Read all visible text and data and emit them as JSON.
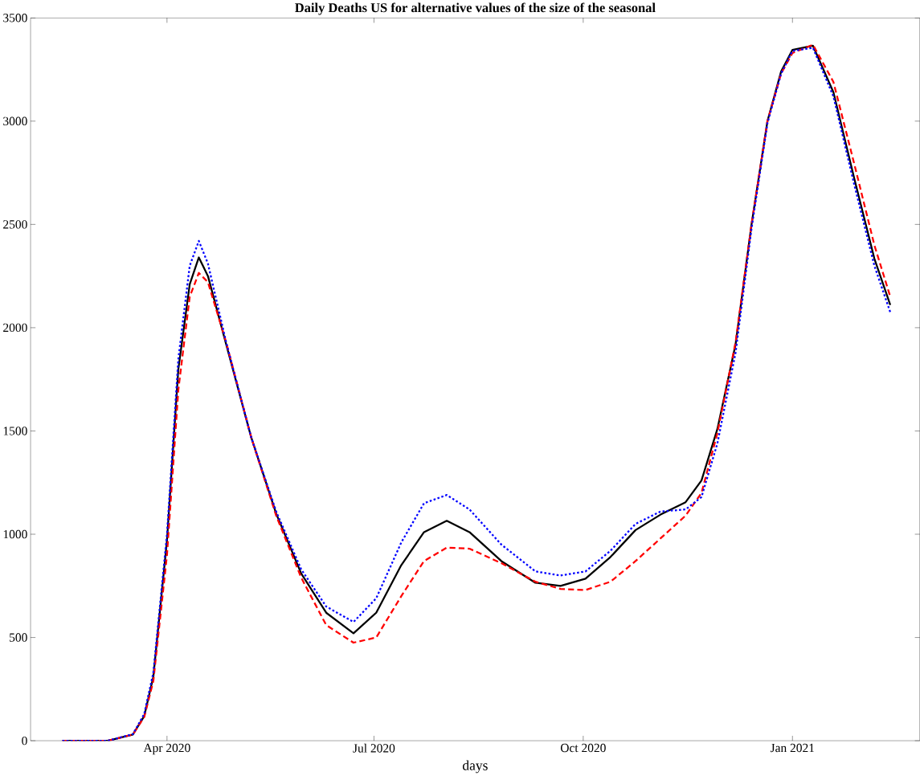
{
  "chart_data": {
    "type": "line",
    "title": "Daily Deaths US for alternative values of the size of the seasonal",
    "xlabel": "days",
    "x": [
      "2020-02-15",
      "2020-03-06",
      "2020-03-17",
      "2020-03-22",
      "2020-03-26",
      "2020-04-01",
      "2020-04-06",
      "2020-04-11",
      "2020-04-15",
      "2020-04-19",
      "2020-04-27",
      "2020-05-08",
      "2020-05-19",
      "2020-05-30",
      "2020-06-10",
      "2020-06-22",
      "2020-07-02",
      "2020-07-13",
      "2020-07-23",
      "2020-08-02",
      "2020-08-12",
      "2020-08-26",
      "2020-09-10",
      "2020-09-21",
      "2020-10-02",
      "2020-10-13",
      "2020-10-24",
      "2020-11-04",
      "2020-11-15",
      "2020-11-22",
      "2020-11-29",
      "2020-12-07",
      "2020-12-14",
      "2020-12-21",
      "2020-12-27",
      "2021-01-01",
      "2021-01-10",
      "2021-01-19",
      "2021-01-28",
      "2021-02-06",
      "2021-02-13"
    ],
    "series": [
      {
        "color": "#000000",
        "line_style": "solid",
        "values": [
          0,
          0,
          30,
          120,
          310,
          970,
          1800,
          2210,
          2340,
          2250,
          1920,
          1470,
          1100,
          810,
          620,
          520,
          620,
          850,
          1010,
          1065,
          1010,
          870,
          765,
          750,
          785,
          890,
          1020,
          1095,
          1155,
          1260,
          1510,
          1920,
          2500,
          3000,
          3240,
          3345,
          3365,
          3140,
          2730,
          2335,
          2110
        ]
      },
      {
        "color": "#ff0000",
        "line_style": "dashed",
        "values": [
          0,
          0,
          30,
          115,
          290,
          900,
          1700,
          2150,
          2265,
          2220,
          1930,
          1470,
          1090,
          790,
          560,
          475,
          500,
          700,
          870,
          935,
          930,
          860,
          770,
          735,
          730,
          770,
          870,
          980,
          1090,
          1200,
          1490,
          1930,
          2500,
          3000,
          3230,
          3330,
          3370,
          3190,
          2800,
          2400,
          2150
        ]
      },
      {
        "color": "#0000ff",
        "line_style": "dotted",
        "values": [
          0,
          0,
          32,
          130,
          330,
          1000,
          1850,
          2300,
          2420,
          2310,
          1930,
          1470,
          1110,
          830,
          650,
          575,
          690,
          960,
          1150,
          1190,
          1120,
          950,
          820,
          800,
          820,
          920,
          1050,
          1110,
          1120,
          1180,
          1440,
          1880,
          2480,
          2990,
          3230,
          3340,
          3355,
          3120,
          2700,
          2300,
          2075
        ]
      }
    ],
    "xlim": [
      "2020-02-01",
      "2021-02-26"
    ],
    "xticks": [
      {
        "value": "2020-04-01",
        "label": "Apr 2020"
      },
      {
        "value": "2020-07-01",
        "label": "Jul 2020"
      },
      {
        "value": "2020-10-01",
        "label": "Oct 2020"
      },
      {
        "value": "2021-01-01",
        "label": "Jan 2021"
      }
    ],
    "ylim": [
      0,
      3500
    ],
    "yticks": [
      0,
      500,
      1000,
      1500,
      2000,
      2500,
      3000,
      3500
    ]
  }
}
